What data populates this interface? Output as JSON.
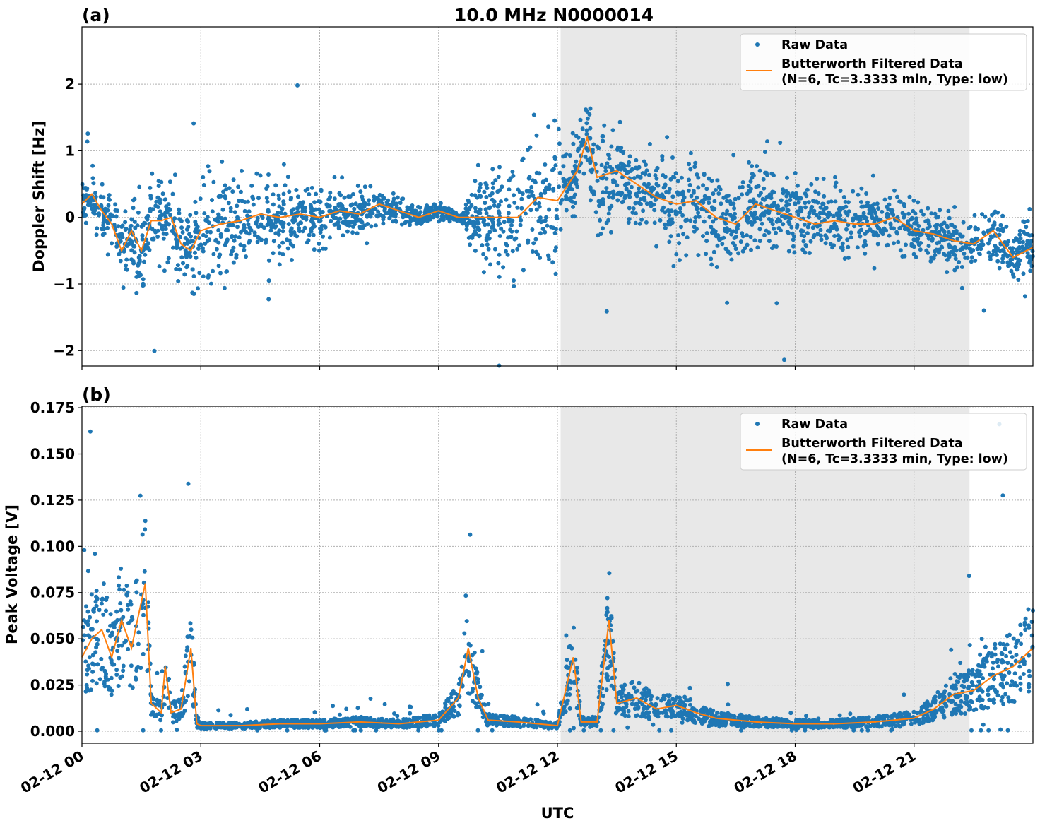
{
  "chart_data": [
    {
      "type": "scatter",
      "panel_label": "(a)",
      "title": "10.0 MHz N0000014",
      "xlabel": "",
      "ylabel": "Doppler Shift [Hz]",
      "xlim_hours_utc": [
        0,
        24
      ],
      "ylim": [
        -2.23,
        2.86
      ],
      "yticks": [
        "−2",
        "−1",
        "0",
        "1",
        "2"
      ],
      "ytick_values": [
        -2,
        -1,
        0,
        1,
        2
      ],
      "grid": true,
      "legend_placement": "top-right",
      "shaded_interval_hours_utc": [
        12.08,
        22.4
      ],
      "colors": {
        "raw": "#1f77b4",
        "filtered": "#ff7f0e",
        "shade": "#e8e8e8"
      },
      "legend": {
        "raw": "Raw Data",
        "filtered_line1": "Butterworth Filtered Data",
        "filtered_line2": "(N=6, Tc=3.3333 min, Type: low)"
      },
      "filtered": {
        "x_hours": [
          0,
          0.25,
          0.5,
          0.75,
          1,
          1.25,
          1.5,
          1.75,
          2,
          2.25,
          2.5,
          2.75,
          3,
          3.5,
          4,
          4.5,
          5,
          5.5,
          6,
          6.5,
          7,
          7.5,
          8,
          8.5,
          9,
          9.5,
          10,
          10.5,
          11,
          11.5,
          12,
          12.5,
          12.75,
          13,
          13.5,
          14,
          14.5,
          15,
          15.5,
          16,
          16.5,
          17,
          17.5,
          18,
          18.5,
          19,
          19.5,
          20,
          20.5,
          21,
          21.5,
          22,
          22.5,
          23,
          23.5,
          24
        ],
        "y": [
          0.2,
          0.35,
          0.1,
          -0.1,
          -0.5,
          -0.2,
          -0.5,
          -0.05,
          -0.05,
          0.0,
          -0.4,
          -0.5,
          -0.2,
          -0.1,
          -0.05,
          0.05,
          0.0,
          0.05,
          0.0,
          0.1,
          0.05,
          0.2,
          0.1,
          0.0,
          0.1,
          0.0,
          0.0,
          0.0,
          0.0,
          0.3,
          0.25,
          0.7,
          1.2,
          0.6,
          0.7,
          0.5,
          0.3,
          0.2,
          0.25,
          0.0,
          -0.1,
          0.2,
          0.1,
          0.0,
          -0.1,
          -0.05,
          -0.1,
          -0.1,
          0.0,
          -0.2,
          -0.25,
          -0.35,
          -0.4,
          -0.2,
          -0.6,
          -0.45
        ]
      },
      "raw_spread": {
        "x_hours": [
          0,
          3,
          9.5,
          10,
          11.3,
          12.5,
          16,
          21,
          24
        ],
        "half_width": [
          0.3,
          0.7,
          0.05,
          0.6,
          1.0,
          0.6,
          0.6,
          0.35,
          0.35
        ]
      }
    },
    {
      "type": "scatter",
      "panel_label": "(b)",
      "xlabel": "UTC",
      "ylabel": "Peak Voltage [V]",
      "xlim_hours_utc": [
        0,
        24
      ],
      "ylim": [
        -0.0065,
        0.1758
      ],
      "yticks": [
        "0.000",
        "0.025",
        "0.050",
        "0.075",
        "0.100",
        "0.125",
        "0.150",
        "0.175"
      ],
      "ytick_values": [
        0,
        0.025,
        0.05,
        0.075,
        0.1,
        0.125,
        0.15,
        0.175
      ],
      "xticks": [
        "02-12 00",
        "02-12 03",
        "02-12 06",
        "02-12 09",
        "02-12 12",
        "02-12 15",
        "02-12 18",
        "02-12 21"
      ],
      "xtick_hours": [
        0,
        3,
        6,
        9,
        12,
        15,
        18,
        21
      ],
      "grid": true,
      "legend_placement": "top-right",
      "shaded_interval_hours_utc": [
        12.08,
        22.4
      ],
      "legend": {
        "raw": "Raw Data",
        "filtered_line1": "Butterworth Filtered Data",
        "filtered_line2": "(N=6, Tc=3.3333 min, Type: low)"
      },
      "filtered": {
        "x_hours": [
          0,
          0.25,
          0.5,
          0.75,
          1,
          1.25,
          1.5,
          1.6,
          1.75,
          2,
          2.1,
          2.25,
          2.5,
          2.75,
          2.9,
          3,
          4,
          5,
          6,
          7,
          8,
          9,
          9.5,
          9.75,
          10,
          10.25,
          11,
          12,
          12.4,
          12.6,
          13,
          13.3,
          13.5,
          14,
          14.5,
          15,
          15.5,
          16,
          17,
          18,
          19,
          20,
          21,
          21.5,
          22,
          22.5,
          23,
          23.5,
          24
        ],
        "y": [
          0.04,
          0.05,
          0.055,
          0.04,
          0.06,
          0.045,
          0.07,
          0.08,
          0.015,
          0.01,
          0.035,
          0.01,
          0.012,
          0.045,
          0.004,
          0.003,
          0.003,
          0.004,
          0.004,
          0.005,
          0.004,
          0.006,
          0.018,
          0.045,
          0.018,
          0.006,
          0.005,
          0.003,
          0.04,
          0.005,
          0.005,
          0.06,
          0.015,
          0.018,
          0.012,
          0.014,
          0.01,
          0.007,
          0.005,
          0.004,
          0.004,
          0.005,
          0.007,
          0.012,
          0.02,
          0.022,
          0.03,
          0.035,
          0.045
        ]
      }
    }
  ]
}
